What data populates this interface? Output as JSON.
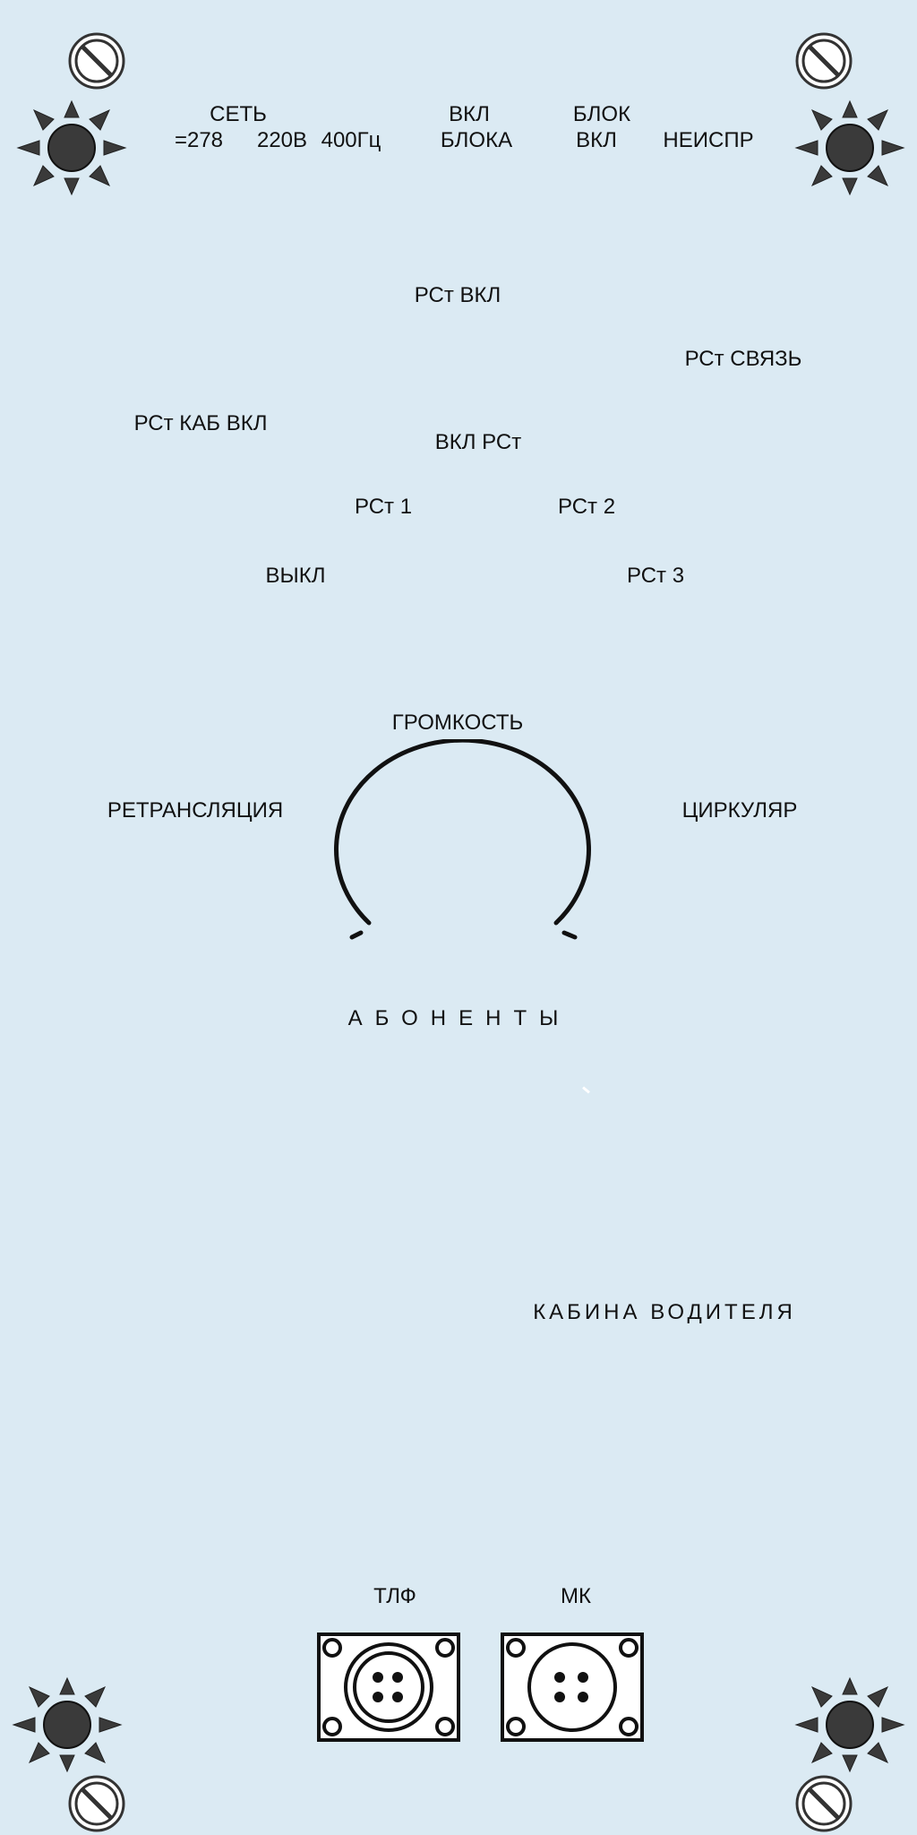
{
  "panel": {
    "top_labels": {
      "net_title": "СЕТЬ",
      "net_dc": "=278",
      "net_ac": "220В",
      "net_freq": "400Гц",
      "vkl_line1": "ВКЛ",
      "vkl_line2": "БЛОКА",
      "blok_line1": "БЛОК",
      "blok_line2": "ВКЛ",
      "fault": "НЕИСПР"
    },
    "radio": {
      "rst_on": "РСт ВКЛ",
      "rst_link": "РСт СВЯЗЬ",
      "rst_cab_on": "РСт КАБ ВКЛ",
      "switch_title": "ВКЛ РСт",
      "pos_1": "РСт 1",
      "pos_2": "РСт 2",
      "pos_off": "ВЫКЛ",
      "pos_3": "РСт 3"
    },
    "volume": {
      "title": "ГРОМКОСТЬ",
      "left": "РЕТРАНСЛЯЦИЯ",
      "right": "ЦИРКУЛЯР",
      "bottom": "АБОНЕНТЫ"
    },
    "cabin": "КАБИНА ВОДИТЕЛЯ",
    "connectors": {
      "tlf": "ТЛФ",
      "mk": "МК"
    }
  },
  "colors": {
    "background": "#dbeaf3",
    "indicator": "#3a3a3a",
    "stroke": "#111111"
  },
  "icons": [
    "prohibited-icon",
    "indicator-lamp-icon",
    "connector-icon"
  ]
}
